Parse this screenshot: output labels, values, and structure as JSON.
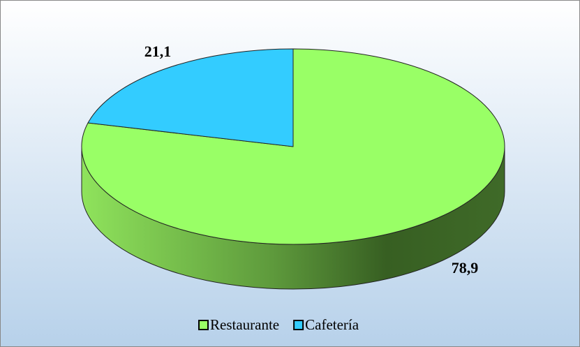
{
  "chart_data": {
    "type": "pie",
    "categories": [
      "Restaurante",
      "Cafetería"
    ],
    "values": [
      78.9,
      21.1
    ],
    "value_labels": [
      "78,9",
      "21,1"
    ],
    "colors": [
      "#99ff66",
      "#33ccff"
    ],
    "legend": "bottom"
  }
}
